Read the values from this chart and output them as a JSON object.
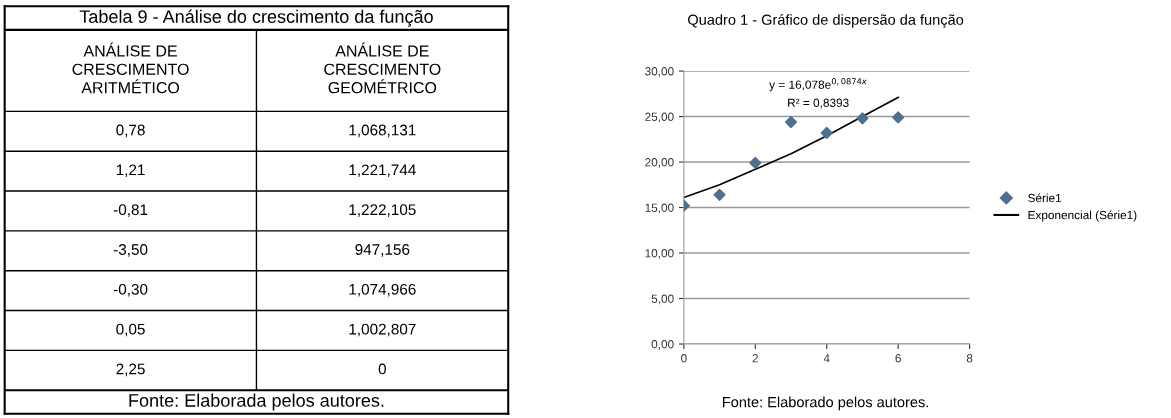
{
  "chart_data": [
    {
      "type": "other",
      "title": "Tabela 9 - Análise do crescimento da função",
      "annotations": [
        "ANÁLISE DE\nCRESCIMENTO\nARITMÉTICO",
        "ANÁLISE DE\nCRESCIMENTO\nGEOMÉTRICO",
        "0,78",
        "1,068,131",
        "1,21",
        "1,221,744",
        "-0,81",
        "1,222,105",
        "-3,50",
        "947,156",
        "-0,30",
        "1,074,966",
        "0,05",
        "1,002,807",
        "2,25",
        "0",
        "Fonte: Elaborada pelos autores."
      ]
    },
    {
      "type": "scatter",
      "title": "Quadro 1 - Gráfico de dispersão da função",
      "x": [
        0,
        1,
        2,
        3,
        4,
        5,
        6
      ],
      "series": [
        {
          "name": "Série1",
          "type": "scatter",
          "color": "#4f6f8f",
          "marker": "diamond",
          "values": [
            15.2,
            16.4,
            19.9,
            24.4,
            23.2,
            24.8,
            24.9
          ]
        },
        {
          "name": "Exponencial (Série1)",
          "type": "line",
          "color": "#000000",
          "marker": "none",
          "line_style": "solid",
          "values": [
            16.1,
            17.5,
            19.2,
            20.9,
            22.9,
            25.0,
            27.1
          ]
        }
      ],
      "xlim": [
        0,
        8
      ],
      "xticks": [
        0,
        2,
        4,
        6,
        8
      ],
      "ylim": [
        0,
        30
      ],
      "yticks": [
        {
          "value": 0,
          "label": "0,00"
        },
        {
          "value": 5,
          "label": "5,00"
        },
        {
          "value": 10,
          "label": "10,00"
        },
        {
          "value": 15,
          "label": "15,00"
        },
        {
          "value": 20,
          "label": "20,00"
        },
        {
          "value": 25,
          "label": "25,00"
        },
        {
          "value": 30,
          "label": "30,00"
        }
      ],
      "grid": "y",
      "legend": "right",
      "annotations": [
        "y = 16,078e$^{0,0874x}$",
        "R² = 0,8393",
        "Fonte: Elaborado pelos autores."
      ]
    }
  ]
}
